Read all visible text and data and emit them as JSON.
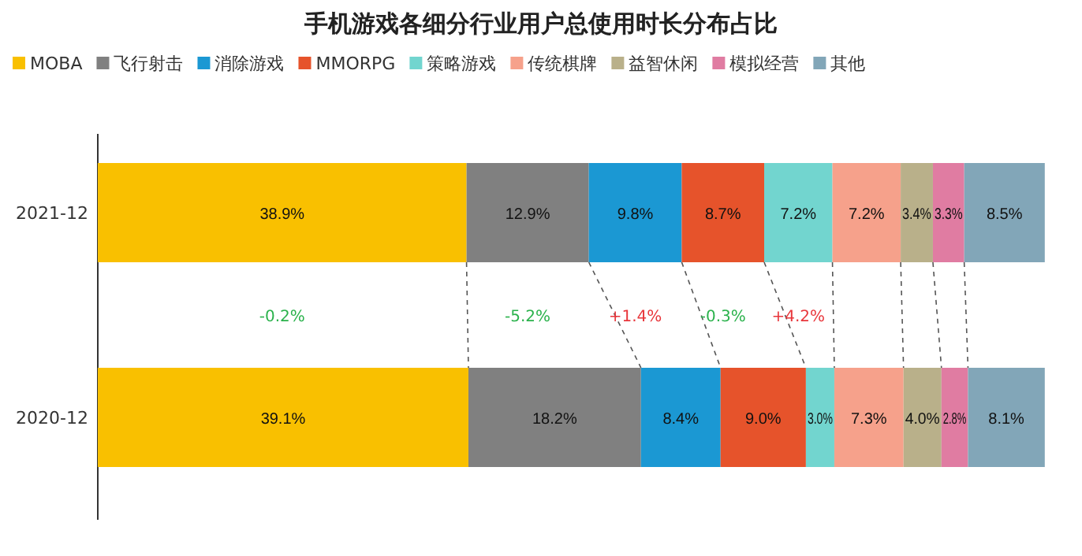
{
  "chart_data": {
    "type": "bar",
    "orientation": "horizontal",
    "stacked": true,
    "title": "手机游戏各细分行业用户总使用时长分布占比",
    "categories": [
      "2021-12",
      "2020-12"
    ],
    "series": [
      {
        "name": "MOBA",
        "color": "#f9c000",
        "values": [
          38.9,
          39.1
        ],
        "value_labels": [
          "38.9%",
          "39.1%"
        ]
      },
      {
        "name": "飞行射击",
        "color": "#808080",
        "values": [
          12.9,
          18.2
        ],
        "value_labels": [
          "12.9%",
          "18.2%"
        ]
      },
      {
        "name": "消除游戏",
        "color": "#1b98d3",
        "values": [
          9.8,
          8.4
        ],
        "value_labels": [
          "9.8%",
          "8.4%"
        ]
      },
      {
        "name": "MMORPG",
        "color": "#e6532b",
        "values": [
          8.7,
          9.0
        ],
        "value_labels": [
          "8.7%",
          "9.0%"
        ]
      },
      {
        "name": "策略游戏",
        "color": "#72d5cf",
        "values": [
          7.2,
          3.0
        ],
        "value_labels": [
          "7.2%",
          "3.0%"
        ]
      },
      {
        "name": "传统棋牌",
        "color": "#f6a18b",
        "values": [
          7.2,
          7.3
        ],
        "value_labels": [
          "7.2%",
          "7.3%"
        ]
      },
      {
        "name": "益智休闲",
        "color": "#b9b08a",
        "values": [
          3.4,
          4.0
        ],
        "value_labels": [
          "3.4%",
          "4.0%"
        ]
      },
      {
        "name": "模拟经营",
        "color": "#e07ca2",
        "values": [
          3.3,
          2.8
        ],
        "value_labels": [
          "3.3%",
          "2.8%"
        ]
      },
      {
        "name": "其他",
        "color": "#82a6b8",
        "values": [
          8.5,
          8.1
        ],
        "value_labels": [
          "8.5%",
          "8.1%"
        ]
      }
    ],
    "annotations": [
      "-0.2%",
      "-5.2%",
      "+1.4%",
      "-0.3%",
      "+4.2%"
    ],
    "xlim": [
      0,
      100
    ],
    "tick_labels": "y",
    "legend": "top"
  }
}
